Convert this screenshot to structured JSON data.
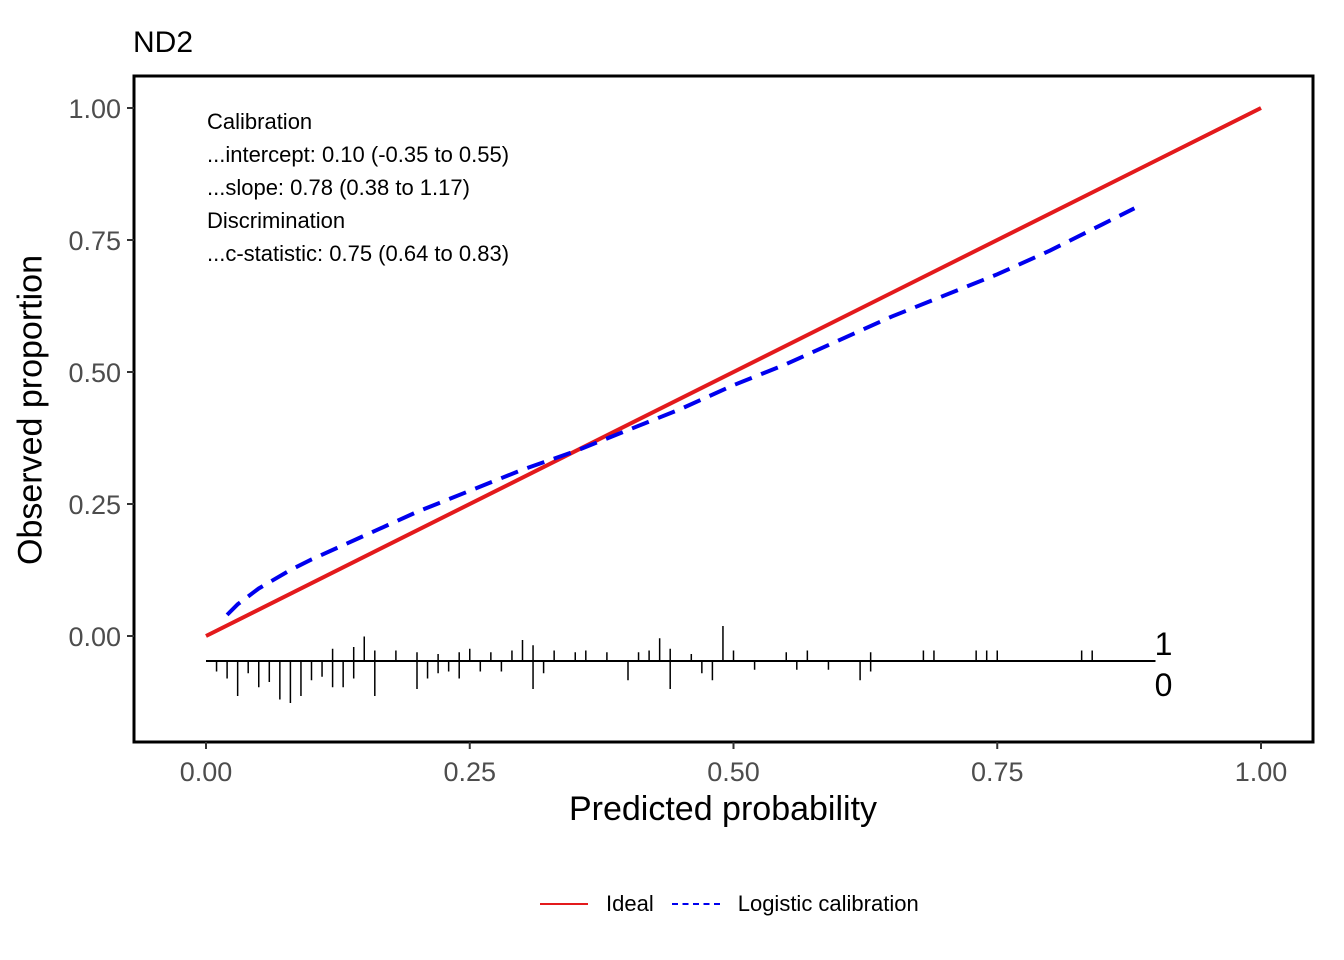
{
  "chart_data": {
    "type": "line",
    "title": "ND2",
    "xlabel": "Predicted probability",
    "ylabel": "Observed proportion",
    "xlim": [
      0,
      1
    ],
    "ylim": [
      -0.2,
      1.06
    ],
    "x_ticks": [
      "0.00",
      "0.25",
      "0.50",
      "0.75",
      "1.00"
    ],
    "y_ticks": [
      "0.00",
      "0.25",
      "0.50",
      "0.75",
      "1.00"
    ],
    "grid": false,
    "legend_position": "bottom",
    "annotation": [
      "Calibration",
      "...intercept: 0.10 (-0.35 to 0.55)",
      "...slope: 0.78 (0.38 to 1.17)",
      "Discrimination",
      "...c-statistic: 0.75 (0.64 to 0.83)"
    ],
    "series": [
      {
        "name": "Ideal",
        "color": "#e31a1c",
        "style": "solid",
        "x": [
          0,
          1
        ],
        "y": [
          0,
          1
        ]
      },
      {
        "name": "Logistic calibration",
        "color": "#0000ee",
        "style": "dashed",
        "x": [
          0.02,
          0.03,
          0.05,
          0.08,
          0.1,
          0.15,
          0.2,
          0.25,
          0.3,
          0.35,
          0.4,
          0.45,
          0.5,
          0.55,
          0.6,
          0.65,
          0.7,
          0.75,
          0.8,
          0.85,
          0.88
        ],
        "y": [
          0.04,
          0.06,
          0.09,
          0.125,
          0.145,
          0.19,
          0.235,
          0.275,
          0.315,
          0.35,
          0.39,
          0.43,
          0.475,
          0.515,
          0.56,
          0.605,
          0.645,
          0.685,
          0.73,
          0.78,
          0.81
        ]
      }
    ],
    "rug": {
      "labels": [
        "1",
        "0"
      ],
      "events": [
        {
          "x": 0.15,
          "h": 0.7
        },
        {
          "x": 0.3,
          "h": 0.6
        },
        {
          "x": 0.43,
          "h": 0.65
        },
        {
          "x": 0.49,
          "h": 1.0
        },
        {
          "x": 0.27,
          "h": 0.25
        },
        {
          "x": 0.29,
          "h": 0.3
        },
        {
          "x": 0.31,
          "h": 0.45
        },
        {
          "x": 0.33,
          "h": 0.3
        },
        {
          "x": 0.35,
          "h": 0.25
        },
        {
          "x": 0.12,
          "h": 0.35
        },
        {
          "x": 0.14,
          "h": 0.4
        },
        {
          "x": 0.16,
          "h": 0.3
        },
        {
          "x": 0.18,
          "h": 0.3
        },
        {
          "x": 0.2,
          "h": 0.25
        },
        {
          "x": 0.22,
          "h": 0.2
        },
        {
          "x": 0.24,
          "h": 0.25
        },
        {
          "x": 0.25,
          "h": 0.35
        },
        {
          "x": 0.36,
          "h": 0.3
        },
        {
          "x": 0.38,
          "h": 0.25
        },
        {
          "x": 0.41,
          "h": 0.25
        },
        {
          "x": 0.42,
          "h": 0.3
        },
        {
          "x": 0.44,
          "h": 0.35
        },
        {
          "x": 0.46,
          "h": 0.2
        },
        {
          "x": 0.5,
          "h": 0.3
        },
        {
          "x": 0.55,
          "h": 0.25
        },
        {
          "x": 0.57,
          "h": 0.3
        },
        {
          "x": 0.63,
          "h": 0.25
        },
        {
          "x": 0.68,
          "h": 0.3
        },
        {
          "x": 0.69,
          "h": 0.3
        },
        {
          "x": 0.73,
          "h": 0.3
        },
        {
          "x": 0.74,
          "h": 0.3
        },
        {
          "x": 0.75,
          "h": 0.3
        },
        {
          "x": 0.83,
          "h": 0.3
        },
        {
          "x": 0.84,
          "h": 0.3
        }
      ],
      "nonevents": [
        {
          "x": 0.01,
          "h": 0.3
        },
        {
          "x": 0.02,
          "h": 0.5
        },
        {
          "x": 0.03,
          "h": 1.0
        },
        {
          "x": 0.04,
          "h": 0.35
        },
        {
          "x": 0.05,
          "h": 0.75
        },
        {
          "x": 0.06,
          "h": 0.6
        },
        {
          "x": 0.07,
          "h": 1.1
        },
        {
          "x": 0.08,
          "h": 1.2
        },
        {
          "x": 0.09,
          "h": 1.0
        },
        {
          "x": 0.1,
          "h": 0.55
        },
        {
          "x": 0.11,
          "h": 0.45
        },
        {
          "x": 0.12,
          "h": 0.75
        },
        {
          "x": 0.13,
          "h": 0.75
        },
        {
          "x": 0.14,
          "h": 0.5
        },
        {
          "x": 0.16,
          "h": 1.0
        },
        {
          "x": 0.2,
          "h": 0.8
        },
        {
          "x": 0.21,
          "h": 0.5
        },
        {
          "x": 0.22,
          "h": 0.35
        },
        {
          "x": 0.23,
          "h": 0.3
        },
        {
          "x": 0.24,
          "h": 0.5
        },
        {
          "x": 0.26,
          "h": 0.3
        },
        {
          "x": 0.28,
          "h": 0.3
        },
        {
          "x": 0.31,
          "h": 0.8
        },
        {
          "x": 0.32,
          "h": 0.35
        },
        {
          "x": 0.4,
          "h": 0.55
        },
        {
          "x": 0.44,
          "h": 0.8
        },
        {
          "x": 0.47,
          "h": 0.35
        },
        {
          "x": 0.48,
          "h": 0.55
        },
        {
          "x": 0.52,
          "h": 0.25
        },
        {
          "x": 0.56,
          "h": 0.25
        },
        {
          "x": 0.59,
          "h": 0.25
        },
        {
          "x": 0.62,
          "h": 0.55
        },
        {
          "x": 0.63,
          "h": 0.3
        }
      ]
    }
  }
}
